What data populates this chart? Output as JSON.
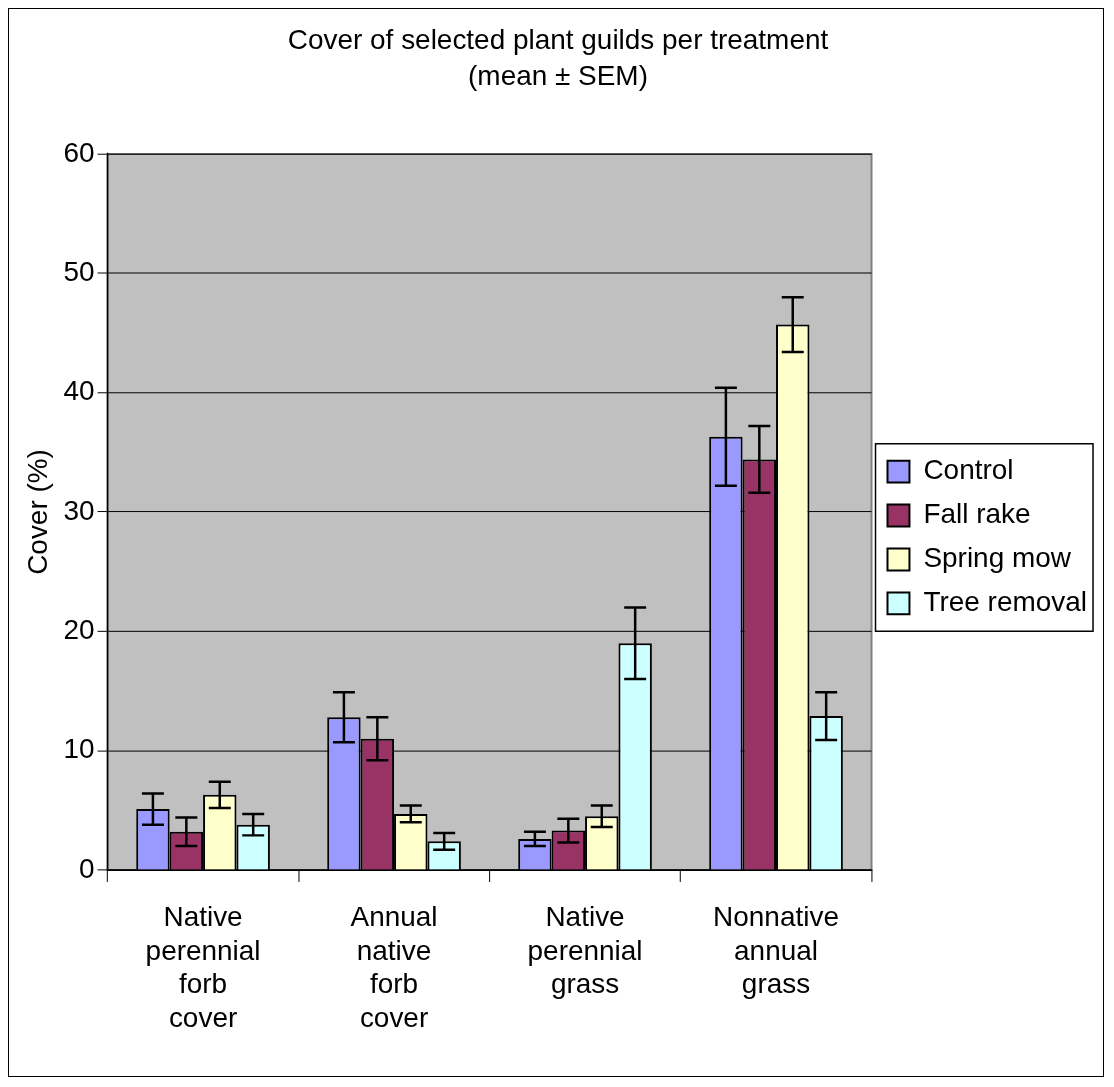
{
  "chart_data": {
    "type": "bar",
    "title": "Cover of selected plant guilds per treatment",
    "subtitle": "(mean ± SEM)",
    "ylabel": "Cover (%)",
    "categories": [
      "Native perennial forb cover",
      "Annual native forb cover",
      "Native perennial grass",
      "Nonnative annual grass"
    ],
    "series": [
      {
        "name": "Control",
        "color": "#9999ff",
        "values": [
          5.1,
          12.8,
          2.6,
          36.3
        ],
        "errors": [
          1.3,
          2.1,
          0.6,
          4.1
        ]
      },
      {
        "name": "Fall rake",
        "color": "#993366",
        "values": [
          3.2,
          11.0,
          3.3,
          34.4
        ],
        "errors": [
          1.2,
          1.8,
          1.0,
          2.8
        ]
      },
      {
        "name": "Spring mow",
        "color": "#ffffcc",
        "values": [
          6.3,
          4.7,
          4.5,
          45.7
        ],
        "errors": [
          1.1,
          0.7,
          0.9,
          2.3
        ]
      },
      {
        "name": "Tree removal",
        "color": "#ccffff",
        "values": [
          3.8,
          2.4,
          19.0,
          12.9
        ],
        "errors": [
          0.9,
          0.7,
          3.0,
          2.0
        ]
      }
    ],
    "ylim": [
      0,
      60
    ],
    "yticks": [
      0,
      10,
      20,
      30,
      40,
      50,
      60
    ],
    "grid": "y",
    "legend": "right"
  }
}
